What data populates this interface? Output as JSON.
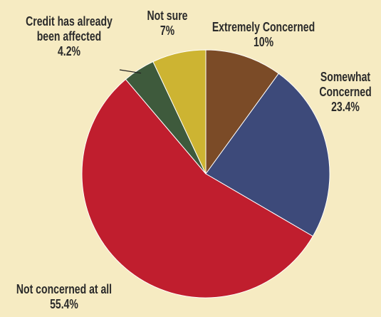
{
  "chart_data": {
    "type": "pie",
    "start_angle_deg": 0,
    "direction": "clockwise",
    "slices": [
      {
        "label_lines": [
          "Extremely Concerned"
        ],
        "value_text": "10%",
        "value": 10,
        "color": "#7b4b27"
      },
      {
        "label_lines": [
          "Somewhat",
          "Concerned"
        ],
        "value_text": "23.4%",
        "value": 23.4,
        "color": "#3d4a7a"
      },
      {
        "label_lines": [
          "Not concerned at all"
        ],
        "value_text": "55.4%",
        "value": 55.4,
        "color": "#c01e2e"
      },
      {
        "label_lines": [
          "Credit has already",
          "been affected"
        ],
        "value_text": "4.2%",
        "value": 4.2,
        "color": "#3e5a3c"
      },
      {
        "label_lines": [
          "Not sure"
        ],
        "value_text": "7%",
        "value": 7,
        "color": "#cdb432"
      }
    ],
    "background": "#f6ebc2",
    "legend": "none"
  }
}
